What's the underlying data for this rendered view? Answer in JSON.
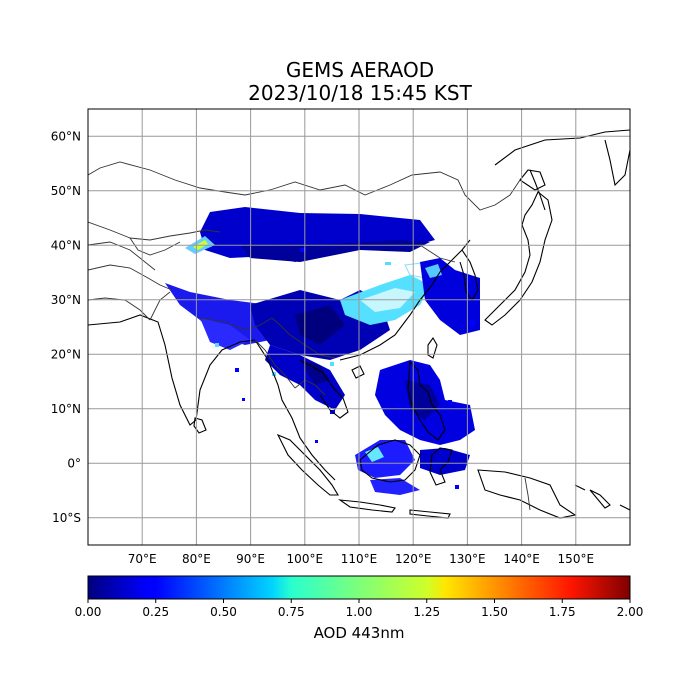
{
  "title": {
    "line1": "GEMS AERAOD",
    "line2": "2023/10/18 15:45 KST"
  },
  "map": {
    "lon_range": [
      60,
      160
    ],
    "lat_range": [
      -15,
      65
    ],
    "lat_labels": [
      {
        "lat": 60,
        "text": "60°N"
      },
      {
        "lat": 50,
        "text": "50°N"
      },
      {
        "lat": 40,
        "text": "40°N"
      },
      {
        "lat": 30,
        "text": "30°N"
      },
      {
        "lat": 20,
        "text": "20°N"
      },
      {
        "lat": 10,
        "text": "10°N"
      },
      {
        "lat": 0,
        "text": "0°"
      },
      {
        "lat": -10,
        "text": "10°S"
      }
    ],
    "lon_labels": [
      {
        "lon": 70,
        "text": "70°E"
      },
      {
        "lon": 80,
        "text": "80°E"
      },
      {
        "lon": 90,
        "text": "90°E"
      },
      {
        "lon": 100,
        "text": "100°E"
      },
      {
        "lon": 110,
        "text": "110°E"
      },
      {
        "lon": 120,
        "text": "120°E"
      },
      {
        "lon": 130,
        "text": "130°E"
      },
      {
        "lon": 140,
        "text": "140°E"
      },
      {
        "lon": 150,
        "text": "150°E"
      }
    ],
    "gridlines": true,
    "colormap": "jet",
    "value_range": [
      0.0,
      2.0
    ]
  },
  "colorbar": {
    "title": "AOD 443nm",
    "ticks": [
      "0.00",
      "0.25",
      "0.50",
      "0.75",
      "1.00",
      "1.25",
      "1.50",
      "1.75",
      "2.00"
    ]
  }
}
